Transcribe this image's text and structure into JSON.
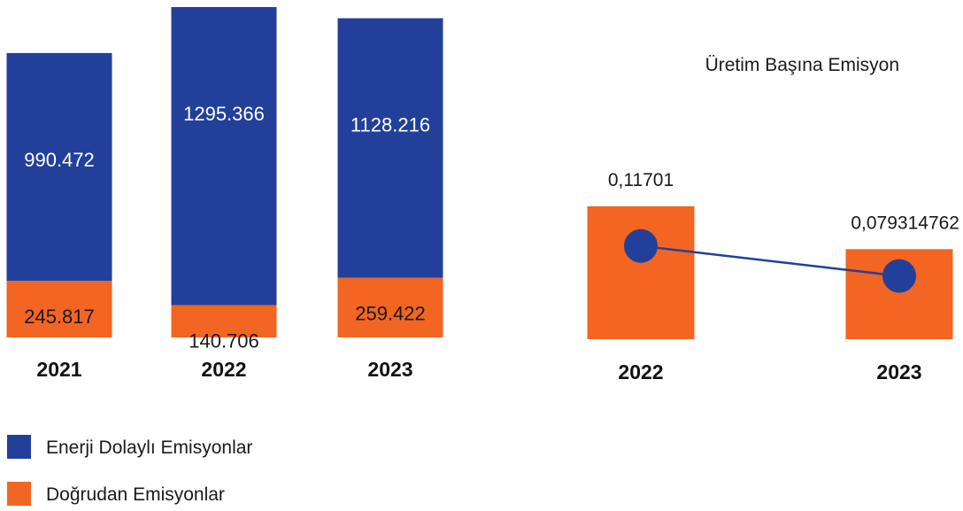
{
  "colors": {
    "enerji": "#22409a",
    "dogrudan": "#f26522",
    "line": "#22409a",
    "text_dark": "#1a1a1a",
    "text_light": "#ffffff"
  },
  "chart_data": [
    {
      "type": "bar",
      "stacked": true,
      "title": "",
      "categories": [
        "2021",
        "2022",
        "2023"
      ],
      "series": [
        {
          "name": "Doğrudan Emisyonlar",
          "color": "#f26522",
          "values": [
            245.817,
            140.706,
            259.422
          ],
          "labels": [
            "245.817",
            "140.706",
            "259.422"
          ]
        },
        {
          "name": "Enerji Dolaylı Emisyonlar",
          "color": "#22409a",
          "values": [
            990.472,
            1295.366,
            1128.216
          ],
          "labels": [
            "990.472",
            "1295.366",
            "1128.216"
          ]
        }
      ],
      "ylim": [
        0,
        1436.072
      ],
      "grid": false,
      "legend": "bottom-left"
    },
    {
      "type": "bar",
      "title": "Üretim Başına Emisyon",
      "categories": [
        "2022",
        "2023"
      ],
      "series": [
        {
          "color": "#f26522",
          "values": [
            0.11701,
            0.079314762
          ],
          "labels": [
            "0,11701",
            "0,079314762"
          ]
        }
      ],
      "grid": false
    }
  ],
  "legend": [
    {
      "label": "Enerji Dolaylı Emisyonlar",
      "color": "#22409a"
    },
    {
      "label": "Doğrudan Emisyonlar",
      "color": "#f26522"
    }
  ]
}
